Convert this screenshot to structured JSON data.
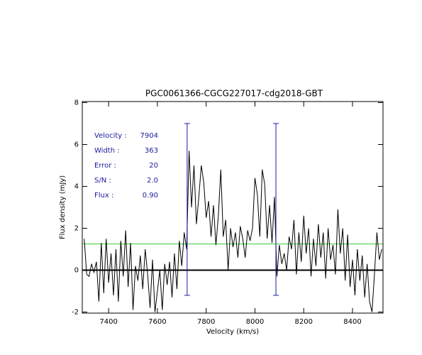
{
  "chart_data": {
    "type": "line",
    "title": "PGC0061366-CGCG227017-cdg2018-GBT",
    "xlabel": "Velocity (km/s)",
    "ylabel": "Flux density (mJy)",
    "xlim": [
      7292,
      8525
    ],
    "ylim": [
      -2.05,
      8.05
    ],
    "xticks": [
      7400,
      7600,
      7800,
      8000,
      8200,
      8400
    ],
    "yticks": [
      -2,
      0,
      2,
      4,
      6,
      8
    ],
    "x": [
      7300,
      7310,
      7320,
      7330,
      7340,
      7350,
      7360,
      7370,
      7380,
      7390,
      7400,
      7410,
      7420,
      7430,
      7440,
      7450,
      7460,
      7470,
      7480,
      7490,
      7500,
      7510,
      7520,
      7530,
      7540,
      7550,
      7560,
      7570,
      7580,
      7590,
      7600,
      7610,
      7620,
      7630,
      7640,
      7650,
      7660,
      7670,
      7680,
      7690,
      7700,
      7710,
      7720,
      7730,
      7740,
      7750,
      7760,
      7770,
      7780,
      7790,
      7800,
      7810,
      7820,
      7830,
      7840,
      7850,
      7860,
      7870,
      7880,
      7890,
      7900,
      7910,
      7920,
      7930,
      7940,
      7950,
      7960,
      7970,
      7980,
      7990,
      8000,
      8010,
      8020,
      8030,
      8040,
      8050,
      8060,
      8070,
      8080,
      8090,
      8100,
      8110,
      8120,
      8130,
      8140,
      8150,
      8160,
      8170,
      8180,
      8190,
      8200,
      8210,
      8220,
      8230,
      8240,
      8250,
      8260,
      8270,
      8280,
      8290,
      8300,
      8310,
      8320,
      8330,
      8340,
      8350,
      8360,
      8370,
      8380,
      8390,
      8400,
      8410,
      8420,
      8430,
      8440,
      8450,
      8460,
      8470,
      8480,
      8490,
      8500,
      8510,
      8520
    ],
    "series": [
      {
        "color": "#000000",
        "values": [
          1.5,
          -0.2,
          -0.3,
          0.3,
          -0.1,
          0.4,
          -1.5,
          1.3,
          -1.1,
          1.5,
          -0.6,
          0.8,
          -1.2,
          1.0,
          -1.5,
          1.4,
          -0.3,
          1.9,
          -0.8,
          1.3,
          -1.9,
          0.2,
          -0.5,
          0.7,
          -0.9,
          1.0,
          -0.2,
          -1.8,
          0.5,
          -2.0,
          -1.0,
          0.0,
          -1.9,
          0.3,
          -0.7,
          0.4,
          -1.3,
          0.8,
          -0.9,
          1.4,
          0.2,
          1.8,
          1.0,
          5.7,
          3.0,
          5.0,
          2.2,
          3.5,
          5.0,
          4.2,
          2.5,
          3.3,
          1.6,
          3.1,
          1.2,
          2.6,
          4.8,
          1.6,
          2.4,
          0.0,
          2.0,
          1.1,
          1.8,
          0.6,
          2.1,
          1.5,
          0.6,
          1.9,
          1.4,
          2.0,
          4.4,
          3.6,
          1.6,
          4.8,
          4.1,
          1.5,
          3.1,
          1.3,
          3.5,
          -0.3,
          1.2,
          0.3,
          0.8,
          0.0,
          1.6,
          1.0,
          2.4,
          -0.2,
          1.8,
          0.4,
          2.6,
          0.8,
          2.0,
          -0.3,
          1.5,
          0.2,
          2.2,
          0.6,
          1.8,
          -0.4,
          2.0,
          0.5,
          1.2,
          -0.2,
          2.9,
          0.8,
          2.0,
          -0.5,
          1.7,
          -0.8,
          0.5,
          -1.2,
          1.0,
          -0.5,
          0.7,
          -1.3,
          0.3,
          -1.5,
          -2.0,
          -0.2,
          1.8,
          0.5,
          1.0
        ]
      }
    ],
    "markers": {
      "x": [
        7722,
        8086
      ],
      "range": [
        -1.2,
        7.0
      ],
      "color": "#1a1aa8"
    },
    "threshold": {
      "value": 1.25,
      "color": "#33cc33"
    },
    "baseline": {
      "value": 0,
      "color": "#000000"
    },
    "annotations": [
      {
        "label": "Velocity :",
        "value": "7904"
      },
      {
        "label": "Width :",
        "value": "363"
      },
      {
        "label": "Error :",
        "value": "20"
      },
      {
        "label": "S/N :",
        "value": "2.0"
      },
      {
        "label": "Flux :",
        "value": "0.90"
      }
    ]
  }
}
